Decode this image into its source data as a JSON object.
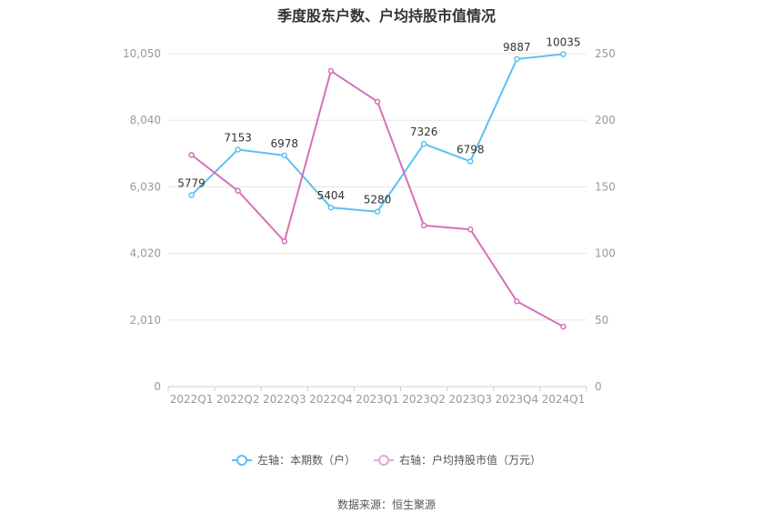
{
  "title": "季度股东户数、户均持股市值情况",
  "source": "数据来源：恒生聚源",
  "legend": [
    {
      "label": "左轴：本期数（户）",
      "color": "#5BC1F0"
    },
    {
      "label": "右轴：户均持股市值（万元）",
      "color": "#D670B8"
    }
  ],
  "chart_data": {
    "type": "line",
    "categories": [
      "2022Q1",
      "2022Q2",
      "2022Q3",
      "2022Q4",
      "2023Q1",
      "2023Q2",
      "2023Q3",
      "2023Q4",
      "2024Q1"
    ],
    "y_left": {
      "min": 0,
      "max": 10050,
      "ticks": [
        0,
        2010,
        4020,
        6030,
        8040,
        10050
      ],
      "tick_labels": [
        "0",
        "2,010",
        "4,020",
        "6,030",
        "8,040",
        "10,050"
      ]
    },
    "y_right": {
      "min": 0,
      "max": 250,
      "ticks": [
        0,
        50,
        100,
        150,
        200,
        250
      ],
      "tick_labels": [
        "0",
        "50",
        "100",
        "150",
        "200",
        "250"
      ]
    },
    "series": [
      {
        "name": "左轴：本期数（户）",
        "axis": "left",
        "color": "#5BC1F0",
        "values": [
          5779,
          7153,
          6978,
          5404,
          5280,
          7326,
          6798,
          9887,
          10035
        ],
        "show_labels": true
      },
      {
        "name": "右轴：户均持股市值（万元）",
        "axis": "right",
        "color": "#D670B8",
        "values": [
          174,
          147,
          109,
          237,
          214,
          121,
          118,
          64,
          45
        ],
        "show_labels": false
      }
    ],
    "grid": true
  }
}
